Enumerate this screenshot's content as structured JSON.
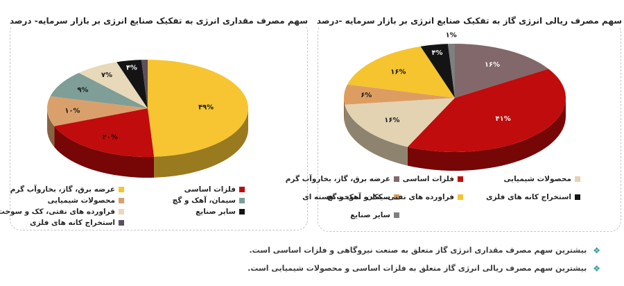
{
  "page": {
    "background": "#ffffff"
  },
  "accent": {
    "note_bullet_color": "#2F9B8E",
    "title_color": "#262626",
    "border_color": "#c6c6c6"
  },
  "notes": {
    "marker": "❖",
    "items": [
      "بیشترین سهم مصرف مقداری انرژی گاز متعلق به صنعت نیروگاهی و فلزات اساسی است.",
      "بیشترین سهم مصرف ریالی انرژی گاز متعلق به فلزات اساسی و محصولات شیمیایی است."
    ]
  },
  "chart_data": [
    {
      "type": "pie",
      "style": "pie3d",
      "title": "سهم مصرف مقداری انرژی به تفکیک صنایع انرژی بر بازار سرمایه- درصد",
      "unit": "درصد",
      "legend_position": "bottom",
      "values_are_percent": true,
      "slices": [
        {
          "label": "عرضه برق، گاز، بخاروآب گرم",
          "value": 49,
          "pct_label": "۴۹%",
          "color": "#F7C531",
          "label_color": "#1a1a1a"
        },
        {
          "label": "فلزات اساسی",
          "value": 20,
          "pct_label": "۲۰%",
          "color": "#C00C0C",
          "label_color": "#2b0707"
        },
        {
          "label": "محصولات شیمیایی",
          "value": 10,
          "pct_label": "۱۰%",
          "color": "#D9A06B",
          "label_color": "#1a1a1a"
        },
        {
          "label": "سیمان، آهک و گچ",
          "value": 9,
          "pct_label": "۹%",
          "color": "#7E9E97",
          "label_color": "#1a1a1a"
        },
        {
          "label": "فراورده های نفتی، کک و سوخت هسته ای",
          "value": 7,
          "pct_label": "۷%",
          "color": "#E7D9B9",
          "label_color": "#1a1a1a"
        },
        {
          "label": "سایر صنایع",
          "value": 4,
          "pct_label": "۴%",
          "color": "#141414",
          "label_color": "#f2f2f2"
        },
        {
          "label": "استخراج کانه های فلزی",
          "value": 1,
          "pct_label": "",
          "color": "#5C4F5E",
          "label_color": "#ffffff"
        }
      ]
    },
    {
      "type": "pie",
      "style": "pie3d",
      "title": "سهم مصرف ریالی انرژی گاز به تفکیک صنایع انرژی بر بازار سرمایه -درصد",
      "unit": "درصد",
      "legend_position": "bottom",
      "values_are_percent": true,
      "slices": [
        {
          "label": "عرضه برق، گاز، بخاروآب گرم",
          "value": 16,
          "pct_label": "۱۶%",
          "color": "#82686A",
          "label_color": "#f5f5f5"
        },
        {
          "label": "فلزات اساسی",
          "value": 41,
          "pct_label": "۴۱%",
          "color": "#C00C0C",
          "label_color": "#f5f5f5"
        },
        {
          "label": "محصولات شیمیایی",
          "value": 16,
          "pct_label": "۱۶%",
          "color": "#E3D3B3",
          "label_color": "#1a1a1a"
        },
        {
          "label": "سیمان، آهک و گچ",
          "value": 6,
          "pct_label": "۶%",
          "color": "#DE9D60",
          "label_color": "#1a1a1a"
        },
        {
          "label": "فراورده های نفتی، کک و سوخت هسته ای",
          "value": 16,
          "pct_label": "۱۶%",
          "color": "#F5C42F",
          "label_color": "#1a1a1a"
        },
        {
          "label": "استخراج کانه های فلزی",
          "value": 4,
          "pct_label": "۴%",
          "color": "#141414",
          "label_color": "#f2f2f2"
        },
        {
          "label": "سایر صنایع",
          "value": 1,
          "pct_label": "۱%",
          "color": "#7F7F7F",
          "label_color": "#1a1a1a",
          "label_outside": true
        }
      ]
    }
  ]
}
